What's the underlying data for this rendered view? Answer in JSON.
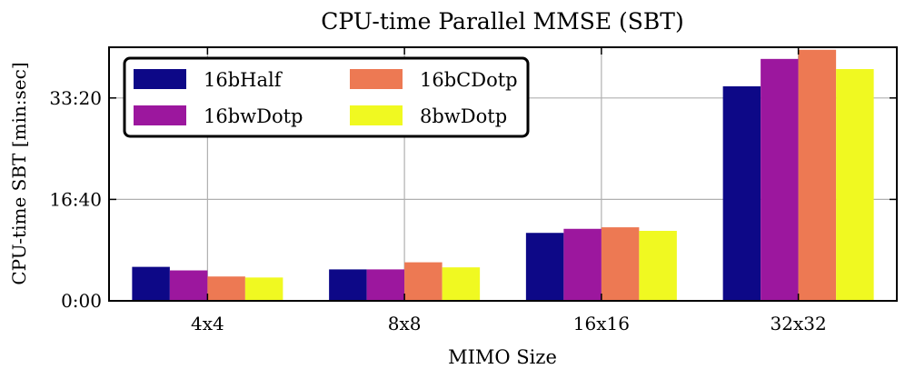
{
  "chart_data": {
    "type": "bar",
    "title": "CPU-time Parallel MMSE (SBT)",
    "xlabel": "MIMO Size",
    "ylabel": "CPU-time SBT [min:sec]",
    "categories": [
      "4x4",
      "8x8",
      "16x16",
      "32x32"
    ],
    "ylim": [
      0,
      2500
    ],
    "yticks": [
      {
        "value": 0,
        "label": "0:00"
      },
      {
        "value": 1000,
        "label": "16:40"
      },
      {
        "value": 2000,
        "label": "33:20"
      }
    ],
    "grid": true,
    "legend_position": "top-left",
    "series": [
      {
        "name": "16bHalf",
        "color": "#0d0887",
        "values": [
          335,
          310,
          670,
          2115
        ]
      },
      {
        "name": "16bwDotp",
        "color": "#9c179e",
        "values": [
          300,
          310,
          710,
          2385
        ]
      },
      {
        "name": "16bCDotp",
        "color": "#ed7953",
        "values": [
          240,
          380,
          725,
          2475
        ]
      },
      {
        "name": "8bwDotp",
        "color": "#f0f921",
        "values": [
          230,
          330,
          690,
          2285
        ]
      }
    ]
  }
}
